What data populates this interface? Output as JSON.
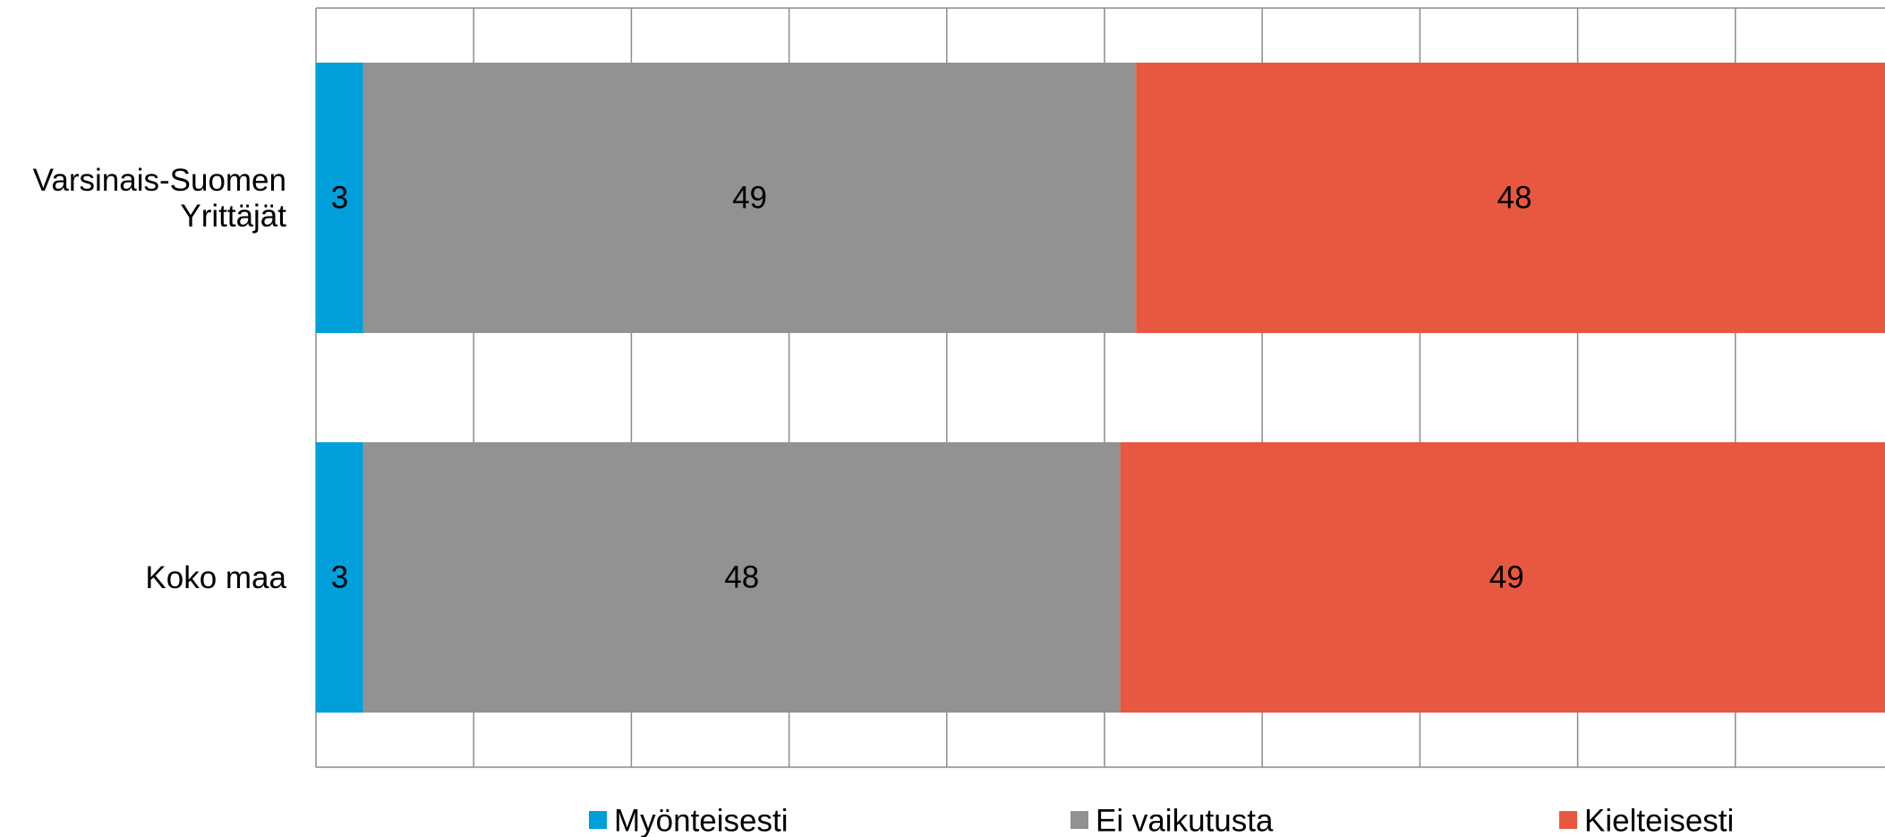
{
  "chart_data": {
    "type": "bar",
    "orientation": "horizontal",
    "stacked": true,
    "categories": [
      "Varsinais-Suomen Yrittäjät",
      "Koko maa"
    ],
    "category_lines": [
      [
        "Varsinais-Suomen",
        "Yrittäjät"
      ],
      [
        "Koko maa"
      ]
    ],
    "series": [
      {
        "name": "Myönteisesti",
        "values": [
          3,
          3
        ],
        "color": "#009fd9"
      },
      {
        "name": "Ei vaikutusta",
        "values": [
          49,
          48
        ],
        "color": "#929292"
      },
      {
        "name": "Kielteisesti",
        "values": [
          48,
          49
        ],
        "color": "#e8573f"
      }
    ],
    "xlim": [
      0,
      100
    ],
    "grid": true,
    "legend": "bottom"
  }
}
